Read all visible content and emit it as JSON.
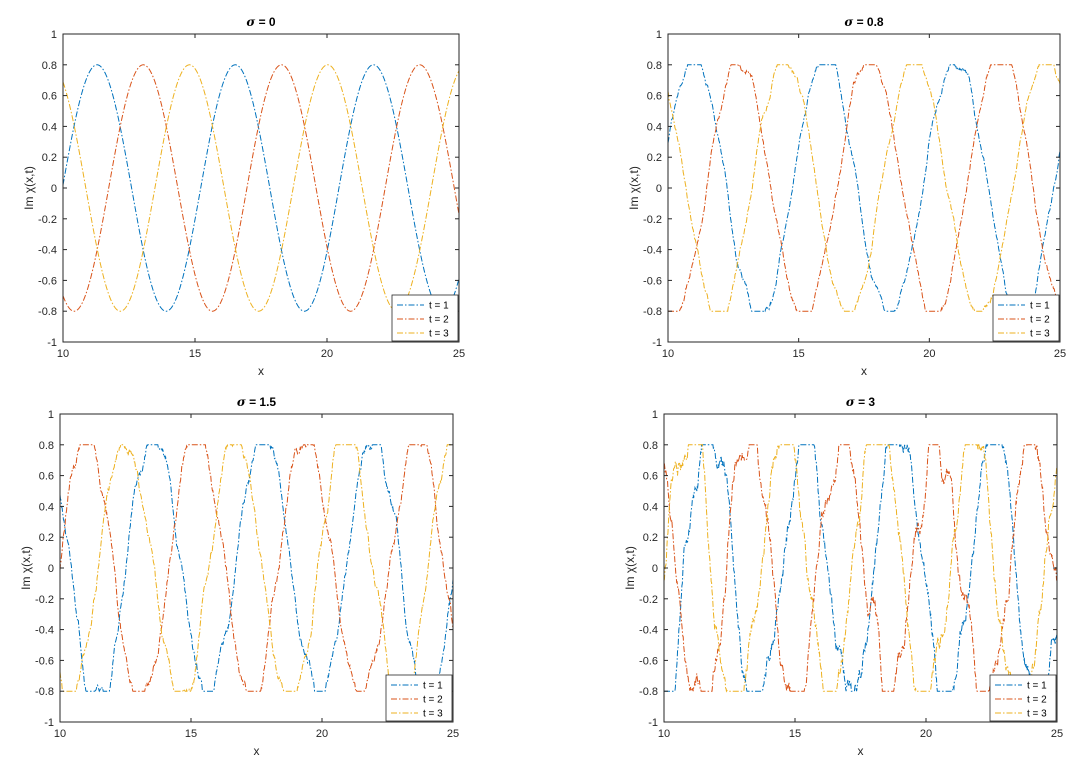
{
  "figure": {
    "series_colors": [
      "#0072BD",
      "#D95319",
      "#EDB120"
    ],
    "legend_location": "bottom-right",
    "line_style": "dash-dot"
  },
  "chart_data": [
    {
      "type": "line",
      "title_prefix": "σ",
      "title_value": "= 0",
      "xlabel": "x",
      "ylabel": "Im χ(x,t)",
      "xlim": [
        10,
        25
      ],
      "ylim": [
        -1,
        1
      ],
      "xticks": [
        10,
        15,
        20,
        25
      ],
      "yticks": [
        -1,
        -0.8,
        -0.6,
        -0.4,
        -0.2,
        0,
        0.2,
        0.4,
        0.6,
        0.8,
        1
      ],
      "amplitude": 0.8,
      "period": 5.236,
      "noise": 0,
      "grid": false,
      "series": [
        {
          "name": "t = 1",
          "phase": 0.49
        },
        {
          "name": "t = 2",
          "phase": 1.54
        },
        {
          "name": "t = 3",
          "phase": 2.59
        }
      ]
    },
    {
      "type": "line",
      "title_prefix": "σ",
      "title_value": "= 0.8",
      "xlabel": "x",
      "ylabel": "Im χ(x,t)",
      "xlim": [
        10,
        25
      ],
      "ylim": [
        -1,
        1
      ],
      "xticks": [
        10,
        15,
        20,
        25
      ],
      "yticks": [
        -1,
        -0.8,
        -0.6,
        -0.4,
        -0.2,
        0,
        0.2,
        0.4,
        0.6,
        0.8,
        1
      ],
      "amplitude": 0.8,
      "period": 5.0,
      "noise": 0.04,
      "grid": false,
      "series": [
        {
          "name": "t = 1",
          "phase": 0.62
        },
        {
          "name": "t = 2",
          "phase": 1.7
        },
        {
          "name": "t = 3",
          "phase": 2.79
        }
      ]
    },
    {
      "type": "line",
      "title_prefix": "σ",
      "title_value": "= 1.5",
      "xlabel": "x",
      "ylabel": "Im χ(x,t)",
      "xlim": [
        10,
        25
      ],
      "ylim": [
        -1,
        1
      ],
      "xticks": [
        10,
        15,
        20,
        25
      ],
      "yticks": [
        -1,
        -0.8,
        -0.6,
        -0.4,
        -0.2,
        0,
        0.2,
        0.4,
        0.6,
        0.8,
        1
      ],
      "amplitude": 0.8,
      "period": 4.2,
      "noise": 0.07,
      "grid": false,
      "series": [
        {
          "name": "t = 1",
          "phase": 0.72
        },
        {
          "name": "t = 2",
          "phase": 1.95
        },
        {
          "name": "t = 3",
          "phase": 3.07
        }
      ]
    },
    {
      "type": "line",
      "title_prefix": "σ",
      "title_value": "= 3",
      "xlabel": "x",
      "ylabel": "Im χ(x,t)",
      "xlim": [
        10,
        25
      ],
      "ylim": [
        -1,
        1
      ],
      "xticks": [
        10,
        15,
        20,
        25
      ],
      "yticks": [
        -1,
        -0.8,
        -0.6,
        -0.4,
        -0.2,
        0,
        0.2,
        0.4,
        0.6,
        0.8,
        1
      ],
      "amplitude": 0.8,
      "period": 3.6,
      "noise": 0.13,
      "grid": false,
      "series": [
        {
          "name": "t = 1",
          "phase": 0.85
        },
        {
          "name": "t = 2",
          "phase": 2.1
        },
        {
          "name": "t = 3",
          "phase": 3.3
        }
      ]
    }
  ]
}
